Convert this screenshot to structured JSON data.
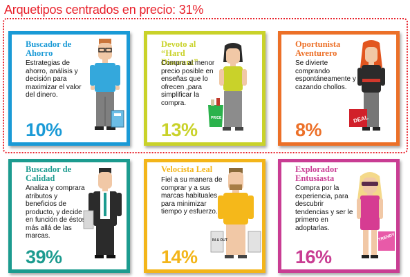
{
  "header": {
    "title": "Arquetipos centrados en precio: 31%"
  },
  "cards": [
    {
      "title": "Buscador de Ahorro",
      "description": "Estrategias de ahorro, análisis y decisión para maximizar el valor del dinero.",
      "percent": "10%",
      "color": "#1a9ad6"
    },
    {
      "title": "Devoto al “Hard Discount”",
      "description": "Compra al menor precio posible en enseñas que lo ofrecen ,para simplificar la compra.",
      "percent": "13%",
      "color": "#c9d22a",
      "bag_label": "PRICE"
    },
    {
      "title": "Oportunista Aventurero",
      "description": "Se divierte comprando espontáneamente y cazando chollos.",
      "percent": "8%",
      "color": "#ec7028",
      "bag_label": "DEAL"
    },
    {
      "title": "Buscador de Calidad",
      "description": "Analiza y comprara atributos y beneficios de producto, y decide en función de éstos, más allá de las marcas.",
      "percent": "39%",
      "color": "#1c9b8f"
    },
    {
      "title": "Velocista Leal",
      "description": "Fiel a su manera de comprar y a sus marcas habituales para minimizar tiempo y esfuerzo.",
      "percent": "14%",
      "color": "#f3b51a",
      "bag_label": "IN & OUT"
    },
    {
      "title": "Explorador Entusiasta",
      "description": "Compra por la experiencia, para descubrir tendencias y ser le primero en adoptarlas.",
      "percent": "16%",
      "color": "#c93d93",
      "bag_label": "TRENDY"
    }
  ]
}
